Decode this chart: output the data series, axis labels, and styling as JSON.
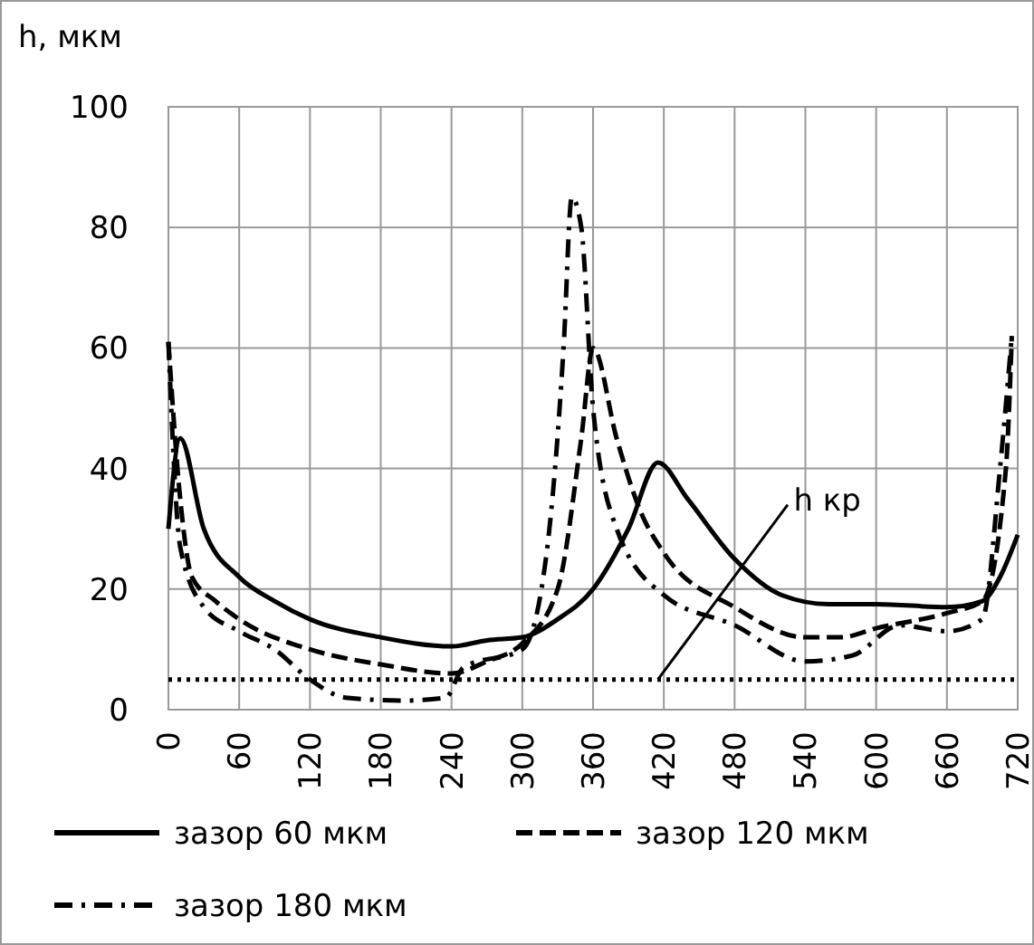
{
  "chart_data": {
    "type": "line",
    "ylabel": "h, мкм",
    "xlim": [
      0,
      720
    ],
    "xticks": [
      0,
      60,
      120,
      180,
      240,
      300,
      360,
      420,
      480,
      540,
      600,
      660,
      720
    ],
    "ylim": [
      0,
      100
    ],
    "yticks": [
      0,
      20,
      40,
      60,
      80,
      100
    ],
    "grid": true,
    "legend": "bottom",
    "ref_lines": [
      {
        "axis": "y",
        "value": 5,
        "label": "h кр",
        "color": "#000000",
        "line_style": "dotted"
      }
    ],
    "series": [
      {
        "name": "зазор 60 мкм",
        "color": "#000000",
        "line_style": "solid",
        "x": [
          0,
          10,
          30,
          60,
          90,
          120,
          180,
          240,
          270,
          300,
          330,
          360,
          390,
          415,
          440,
          480,
          520,
          560,
          600,
          660,
          690,
          705,
          720
        ],
        "values": [
          30,
          45,
          30,
          22,
          18,
          15,
          12,
          10.5,
          11.5,
          12,
          15,
          20,
          30,
          41,
          35,
          25,
          19,
          17.5,
          17.5,
          17,
          18,
          22,
          29
        ]
      },
      {
        "name": "зазор 120 мкм",
        "color": "#000000",
        "line_style": "dashed",
        "x": [
          0,
          10,
          20,
          40,
          60,
          120,
          180,
          240,
          270,
          300,
          330,
          350,
          360,
          380,
          400,
          420,
          480,
          540,
          570,
          600,
          660,
          690,
          710,
          715
        ],
        "values": [
          61,
          35,
          22,
          18,
          15,
          10,
          7.5,
          6,
          8,
          11,
          20,
          45,
          60,
          45,
          33,
          26,
          17,
          12,
          12,
          13.5,
          16,
          18,
          40,
          62
        ]
      },
      {
        "name": "зазор 180 мкм",
        "color": "#000000",
        "line_style": "dashdot",
        "x": [
          0,
          10,
          30,
          60,
          90,
          120,
          150,
          200,
          235,
          250,
          300,
          320,
          335,
          342,
          350,
          360,
          380,
          420,
          480,
          540,
          580,
          620,
          660,
          690,
          705,
          715
        ],
        "values": [
          61,
          27,
          17,
          13,
          10,
          5,
          2,
          1.5,
          2,
          7,
          10,
          25,
          60,
          85,
          80,
          50,
          30,
          19,
          14,
          8,
          9,
          14,
          13,
          15,
          40,
          62
        ]
      }
    ]
  }
}
